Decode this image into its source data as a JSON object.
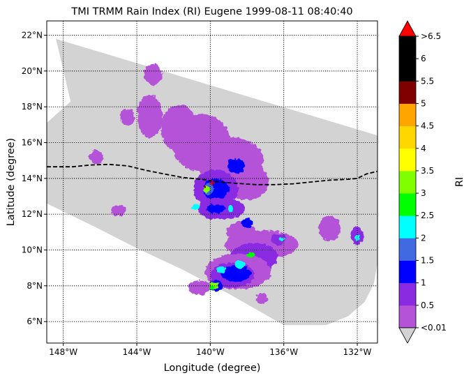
{
  "chart_data": {
    "type": "heatmap",
    "title": "TMI TRMM Rain Index (RI) Eugene 1999-08-11 08:40:40",
    "xlabel": "Longitude (degree)",
    "ylabel": "Latitude (degree)",
    "xlim": [
      -148.9,
      -130.9
    ],
    "ylim": [
      4.8,
      22.8
    ],
    "x_ticks": [
      {
        "value": -148,
        "label": "148°W"
      },
      {
        "value": -144,
        "label": "144°W"
      },
      {
        "value": -140,
        "label": "140°W"
      },
      {
        "value": -136,
        "label": "136°W"
      },
      {
        "value": -132,
        "label": "132°W"
      }
    ],
    "y_ticks": [
      {
        "value": 6,
        "label": "6°N"
      },
      {
        "value": 8,
        "label": "8°N"
      },
      {
        "value": 10,
        "label": "10°N"
      },
      {
        "value": 12,
        "label": "12°N"
      },
      {
        "value": 14,
        "label": "14°N"
      },
      {
        "value": 16,
        "label": "16°N"
      },
      {
        "value": 18,
        "label": "18°N"
      },
      {
        "value": 20,
        "label": "20°N"
      },
      {
        "value": 22,
        "label": "22°N"
      }
    ],
    "grid": true,
    "grid_style": "dotted",
    "swath_color": "#d3d3d3",
    "swath_outline": [
      [
        -148.4,
        21.8
      ],
      [
        -130.9,
        16.4
      ],
      [
        -130.9,
        9.3
      ],
      [
        -131.1,
        8.1
      ],
      [
        -131.6,
        7.1
      ],
      [
        -132.5,
        6.3
      ],
      [
        -133.7,
        5.8
      ],
      [
        -136.0,
        5.8
      ],
      [
        -138.9,
        7.5
      ],
      [
        -141.5,
        8.9
      ],
      [
        -144.0,
        10.1
      ],
      [
        -146.1,
        11.2
      ],
      [
        -148.9,
        12.6
      ],
      [
        -148.9,
        17.1
      ],
      [
        -147.6,
        18.3
      ]
    ],
    "track": {
      "style": "dashed",
      "color": "#000000",
      "points": [
        [
          -148.9,
          14.65
        ],
        [
          -147.5,
          14.65
        ],
        [
          -146.5,
          14.75
        ],
        [
          -145.5,
          14.78
        ],
        [
          -144.5,
          14.7
        ],
        [
          -143.5,
          14.45
        ],
        [
          -142.5,
          14.25
        ],
        [
          -141.5,
          14.05
        ],
        [
          -140.5,
          13.95
        ],
        [
          -139.5,
          13.8
        ],
        [
          -138.5,
          13.72
        ],
        [
          -137.5,
          13.65
        ],
        [
          -136.5,
          13.65
        ],
        [
          -135.5,
          13.7
        ],
        [
          -134.5,
          13.8
        ],
        [
          -133.5,
          13.9
        ],
        [
          -132.5,
          13.95
        ],
        [
          -132.0,
          14.0
        ],
        [
          -131.5,
          14.25
        ],
        [
          -130.9,
          14.4
        ]
      ]
    },
    "storm_center": {
      "lon": -139.9,
      "lat": 13.75,
      "color": "#cc0000"
    },
    "rain_cells": [
      {
        "lon": -143.3,
        "lat": 17.5,
        "rx": 0.7,
        "ry": 1.2,
        "value": 0.3
      },
      {
        "lon": -141.7,
        "lat": 16.8,
        "rx": 1.0,
        "ry": 1.3,
        "value": 0.3
      },
      {
        "lon": -140.5,
        "lat": 16.0,
        "rx": 1.6,
        "ry": 1.6,
        "value": 0.3
      },
      {
        "lon": -139.0,
        "lat": 15.0,
        "rx": 1.9,
        "ry": 1.3,
        "value": 0.3
      },
      {
        "lon": -138.0,
        "lat": 13.8,
        "rx": 1.2,
        "ry": 1.0,
        "value": 0.3
      },
      {
        "lon": -143.1,
        "lat": 19.8,
        "rx": 0.5,
        "ry": 0.6,
        "value": 0.3
      },
      {
        "lon": -144.5,
        "lat": 17.4,
        "rx": 0.4,
        "ry": 0.5,
        "value": 0.3
      },
      {
        "lon": -146.2,
        "lat": 15.2,
        "rx": 0.4,
        "ry": 0.4,
        "value": 0.3
      },
      {
        "lon": -139.7,
        "lat": 13.4,
        "rx": 1.2,
        "ry": 1.1,
        "value": 0.8
      },
      {
        "lon": -139.7,
        "lat": 13.4,
        "rx": 0.7,
        "ry": 0.6,
        "value": 1.2
      },
      {
        "lon": -140.1,
        "lat": 13.4,
        "rx": 0.3,
        "ry": 0.3,
        "value": 1.8
      },
      {
        "lon": -140.2,
        "lat": 13.4,
        "rx": 0.18,
        "ry": 0.2,
        "value": 3.3
      },
      {
        "lon": -140.3,
        "lat": 13.5,
        "rx": 0.07,
        "ry": 0.08,
        "value": 5.1
      },
      {
        "lon": -138.6,
        "lat": 14.7,
        "rx": 0.5,
        "ry": 0.4,
        "value": 1.2
      },
      {
        "lon": -139.4,
        "lat": 12.3,
        "rx": 1.3,
        "ry": 0.6,
        "value": 0.8
      },
      {
        "lon": -139.7,
        "lat": 12.3,
        "rx": 0.5,
        "ry": 0.25,
        "value": 1.2
      },
      {
        "lon": -140.8,
        "lat": 12.4,
        "rx": 0.2,
        "ry": 0.15,
        "value": 2.1
      },
      {
        "lon": -138.9,
        "lat": 12.3,
        "rx": 0.15,
        "ry": 0.15,
        "value": 2.1
      },
      {
        "lon": -138.3,
        "lat": 11.0,
        "rx": 0.8,
        "ry": 0.6,
        "value": 0.3
      },
      {
        "lon": -138.0,
        "lat": 11.5,
        "rx": 0.3,
        "ry": 0.25,
        "value": 1.2
      },
      {
        "lon": -137.2,
        "lat": 10.3,
        "rx": 2.0,
        "ry": 0.8,
        "value": 0.3
      },
      {
        "lon": -137.6,
        "lat": 9.6,
        "rx": 1.3,
        "ry": 0.8,
        "value": 0.8
      },
      {
        "lon": -138.5,
        "lat": 8.8,
        "rx": 1.8,
        "ry": 1.0,
        "value": 0.3
      },
      {
        "lon": -138.8,
        "lat": 8.6,
        "rx": 1.2,
        "ry": 0.7,
        "value": 0.8
      },
      {
        "lon": -138.6,
        "lat": 8.7,
        "rx": 0.8,
        "ry": 0.45,
        "value": 1.2
      },
      {
        "lon": -138.4,
        "lat": 9.2,
        "rx": 0.3,
        "ry": 0.2,
        "value": 2.1
      },
      {
        "lon": -137.8,
        "lat": 9.7,
        "rx": 0.2,
        "ry": 0.15,
        "value": 2.6
      },
      {
        "lon": -139.4,
        "lat": 8.9,
        "rx": 0.25,
        "ry": 0.18,
        "value": 2.1
      },
      {
        "lon": -139.7,
        "lat": 8.0,
        "rx": 0.4,
        "ry": 0.3,
        "value": 1.2
      },
      {
        "lon": -139.8,
        "lat": 8.0,
        "rx": 0.25,
        "ry": 0.2,
        "value": 3.1
      },
      {
        "lon": -139.9,
        "lat": 7.9,
        "rx": 0.12,
        "ry": 0.1,
        "value": 2.6
      },
      {
        "lon": -136.3,
        "lat": 10.6,
        "rx": 0.4,
        "ry": 0.3,
        "value": 0.8
      },
      {
        "lon": -136.1,
        "lat": 10.6,
        "rx": 0.15,
        "ry": 0.12,
        "value": 2.1
      },
      {
        "lon": -133.5,
        "lat": 11.2,
        "rx": 0.6,
        "ry": 0.7,
        "value": 0.3
      },
      {
        "lon": -132.0,
        "lat": 10.8,
        "rx": 0.35,
        "ry": 0.5,
        "value": 0.8
      },
      {
        "lon": -132.0,
        "lat": 10.7,
        "rx": 0.15,
        "ry": 0.2,
        "value": 2.1
      },
      {
        "lon": -145.0,
        "lat": 12.2,
        "rx": 0.4,
        "ry": 0.3,
        "value": 0.3
      },
      {
        "lon": -140.6,
        "lat": 7.9,
        "rx": 0.6,
        "ry": 0.4,
        "value": 0.3
      },
      {
        "lon": -137.2,
        "lat": 7.3,
        "rx": 0.3,
        "ry": 0.3,
        "value": 0.3
      }
    ],
    "colorbar": {
      "label": "RI",
      "boundaries": [
        0.01,
        0.5,
        1,
        1.5,
        2,
        2.5,
        3,
        3.5,
        4,
        4.5,
        5,
        5.5,
        6,
        6.5
      ],
      "colors": [
        "#b452d8",
        "#8a2be2",
        "#0000ff",
        "#4169e1",
        "#00ffff",
        "#00ff00",
        "#7fff00",
        "#ffff00",
        "#ffd700",
        "#ffa500",
        "#800000",
        "#000000",
        "#000000"
      ],
      "tick_labels": [
        "<0.01",
        "0.5",
        "1",
        "1.5",
        "2",
        "2.5",
        "3",
        "3.5",
        "4",
        "4.5",
        "5",
        "5.5",
        "6",
        ">6.5"
      ],
      "under_color": "#d3d3d3",
      "over_color": "#ff0000"
    }
  }
}
